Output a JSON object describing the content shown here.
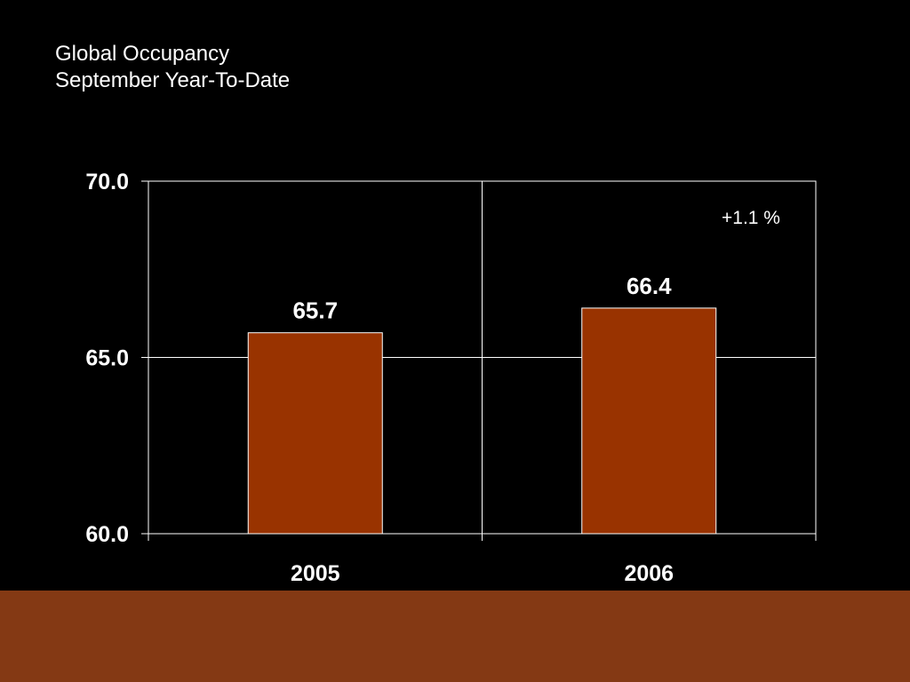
{
  "slide": {
    "title": "Global Occupancy",
    "subtitle": "September Year-To-Date",
    "background_color": "#000000",
    "footer_color": "#843914"
  },
  "chart_data": {
    "type": "bar",
    "categories": [
      "2005",
      "2006"
    ],
    "values": [
      65.7,
      66.4
    ],
    "value_labels": [
      "65.7",
      "66.4"
    ],
    "ylim": [
      60,
      70
    ],
    "yticks": [
      60,
      65,
      70
    ],
    "ytick_labels": [
      "60.0",
      "65.0",
      "70.0"
    ],
    "grid": true,
    "annotation": "+1.1 %",
    "bar_color": "#993300",
    "bar_edge_color": "#ffffff",
    "axis_color": "#ffffff",
    "text_color": "#ffffff"
  }
}
